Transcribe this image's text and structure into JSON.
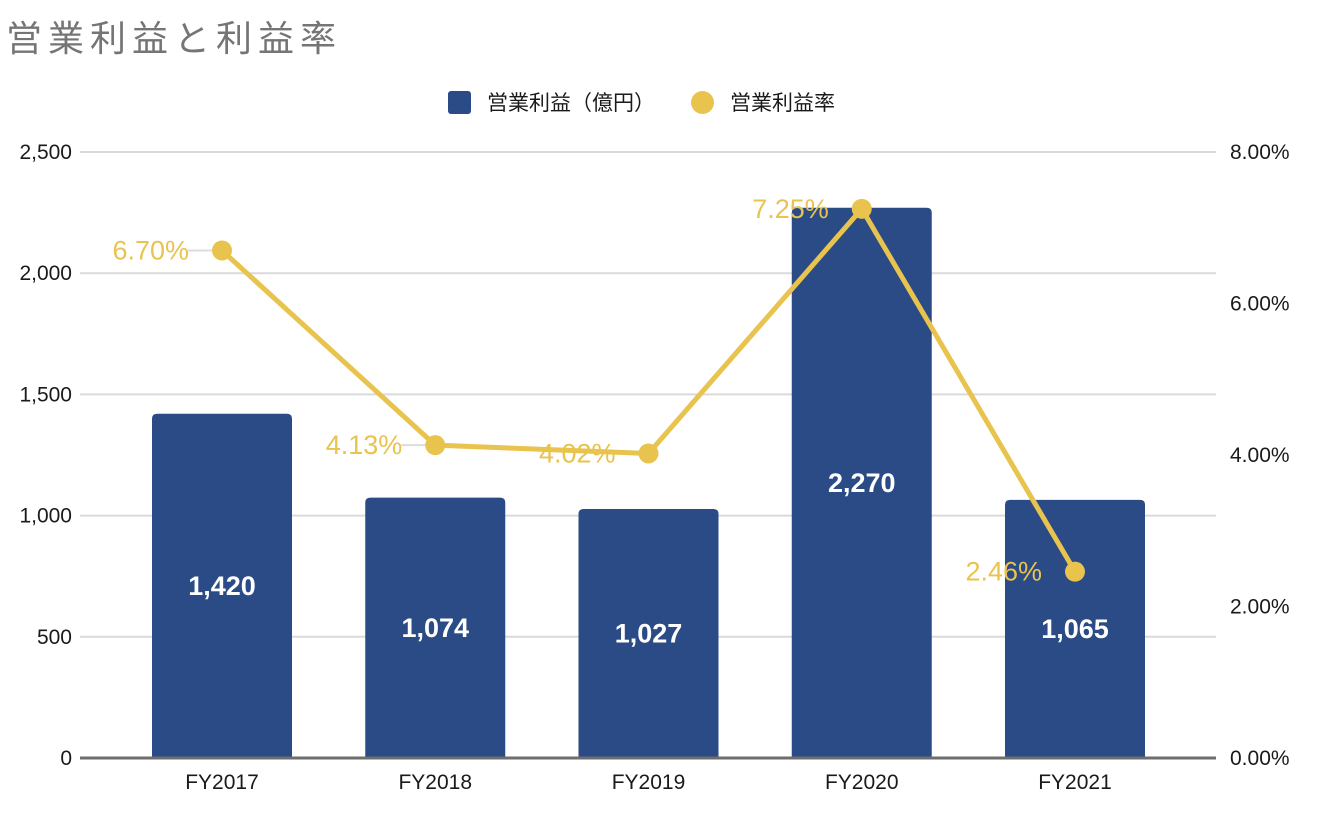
{
  "title": "営業利益と利益率",
  "legend": {
    "bar_label": "営業利益（億円）",
    "line_label": "営業利益率"
  },
  "colors": {
    "bar": "#2A4B86",
    "line": "#E8C34E",
    "title_text": "#757575",
    "axis_text": "#1a1a1a",
    "grid_line": "#DADADA",
    "axis_line": "#6E6E6E",
    "bar_value_text": "#FFFFFF",
    "connector": "#DCDCDC",
    "background": "#FFFFFF"
  },
  "chart_data": {
    "type": "bar",
    "subtype": "combo-bar-line",
    "title": "営業利益と利益率",
    "categories": [
      "FY2017",
      "FY2018",
      "FY2019",
      "FY2020",
      "FY2021"
    ],
    "series": [
      {
        "name": "営業利益（億円）",
        "type": "bar",
        "axis": "left",
        "values": [
          1420,
          1074,
          1027,
          2270,
          1065
        ],
        "labels": [
          "1,420",
          "1,074",
          "1,027",
          "2,270",
          "1,065"
        ]
      },
      {
        "name": "営業利益率",
        "type": "line",
        "axis": "right",
        "values": [
          6.7,
          4.13,
          4.02,
          7.25,
          2.46
        ],
        "labels": [
          "6.70%",
          "4.13%",
          "4.02%",
          "7.25%",
          "2.46%"
        ]
      }
    ],
    "left_axis": {
      "range": [
        0,
        2500
      ],
      "tick_step": 500,
      "ticks": [
        "0",
        "500",
        "1,000",
        "1,500",
        "2,000",
        "2,500"
      ]
    },
    "right_axis": {
      "range": [
        0,
        8
      ],
      "tick_step": 2,
      "ticks": [
        "0.00%",
        "2.00%",
        "4.00%",
        "6.00%",
        "8.00%"
      ]
    },
    "grid": true,
    "legend_position": "top"
  }
}
